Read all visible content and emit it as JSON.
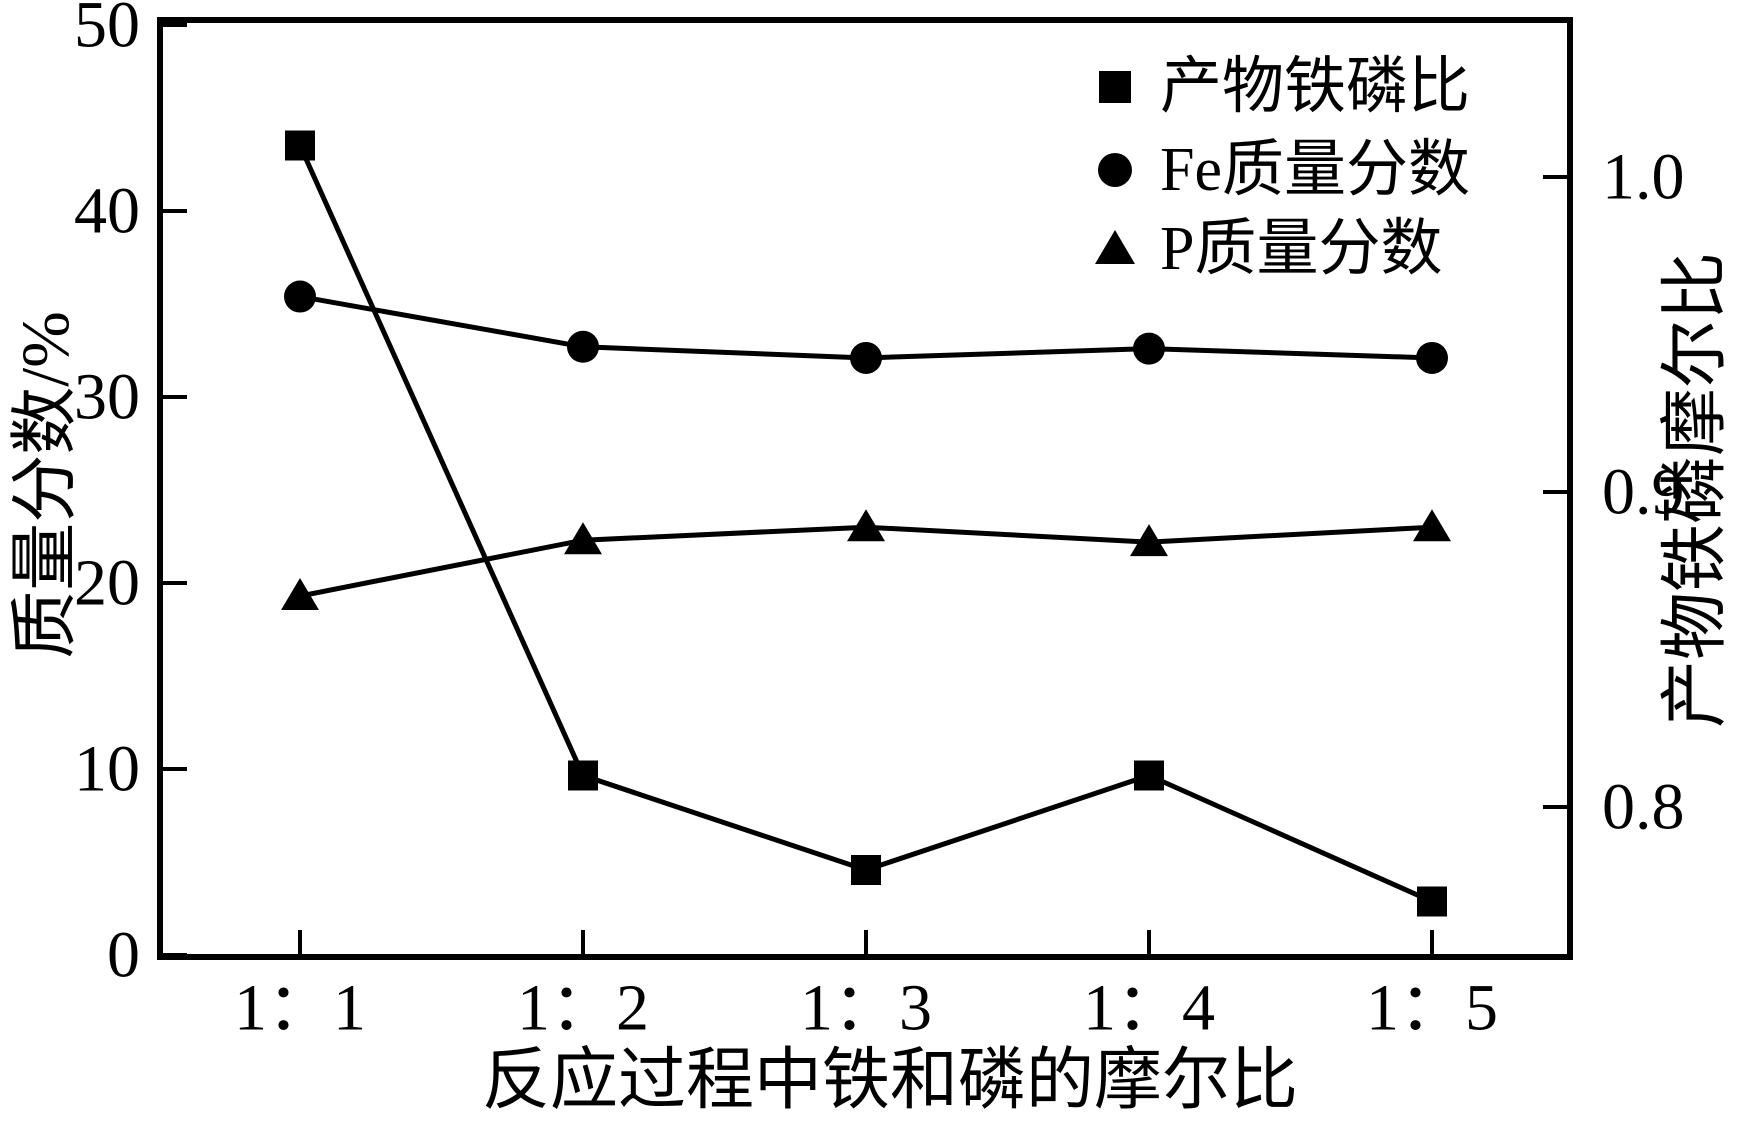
{
  "figure": {
    "background": "#ffffff",
    "ink": "#000000"
  },
  "chart_data": {
    "type": "line",
    "categories": [
      "1：1",
      "1：2",
      "1：3",
      "1：4",
      "1：5"
    ],
    "series": [
      {
        "name": "产物铁磷比",
        "marker": "square",
        "axis": "right",
        "values": [
          1.01,
          0.81,
          0.78,
          0.81,
          0.77
        ]
      },
      {
        "name": "Fe质量分数",
        "marker": "circle",
        "axis": "left",
        "values": [
          35.4,
          32.7,
          32.1,
          32.6,
          32.1
        ]
      },
      {
        "name": "P质量分数",
        "marker": "triangle",
        "axis": "left",
        "values": [
          19.3,
          22.3,
          23.0,
          22.2,
          23.0
        ]
      }
    ],
    "xlabel": "反应过程中铁和磷的摩尔比",
    "ylabel_left": "质量分数/%",
    "ylabel_right": "产物铁磷摩尔比",
    "yticks_left": [
      0,
      10,
      20,
      30,
      40,
      50
    ],
    "yticks_right": [
      0.8,
      0.9,
      1.0
    ],
    "ylim_left": [
      0,
      50.3
    ],
    "ylim_right": [
      0.753,
      1.05
    ],
    "grid": false,
    "legend_position": "upper right inside",
    "line_color": "#000000",
    "marker_color": "#000000"
  }
}
